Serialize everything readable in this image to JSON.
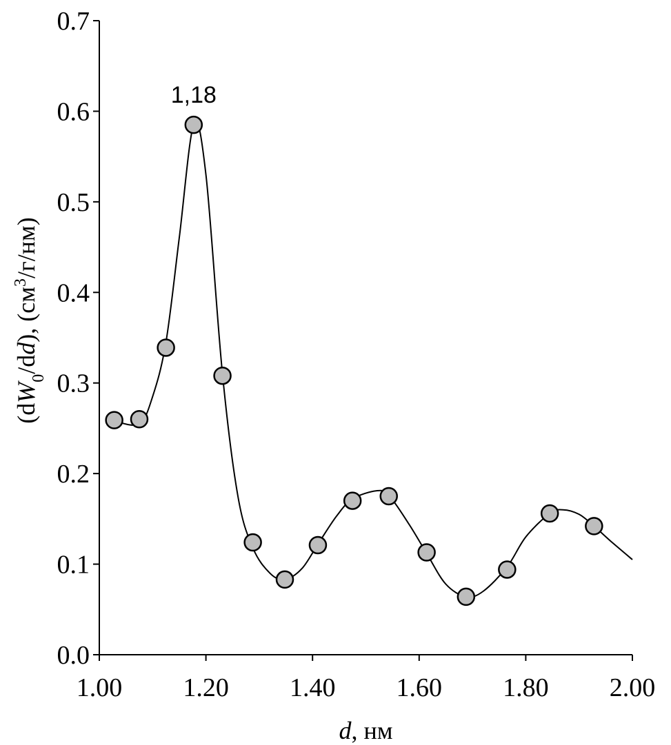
{
  "chart_data": {
    "type": "scatter",
    "title": "",
    "xlabel_var": "d",
    "xlabel_unit": ", нм",
    "ylabel_parts": {
      "open": "(d",
      "var_w": "W",
      "sub_0": "0",
      "mid": "/d",
      "var_d": "d",
      "close_unit": "), (см",
      "sup_3": "3",
      "tail": "/г/нм)"
    },
    "xlim": [
      1.0,
      2.0
    ],
    "ylim": [
      0.0,
      0.7
    ],
    "x_ticks": [
      1.0,
      1.2,
      1.4,
      1.6,
      1.8,
      2.0
    ],
    "x_tick_labels": [
      "1.00",
      "1.20",
      "1.40",
      "1.60",
      "1.80",
      "2.00"
    ],
    "y_ticks": [
      0.0,
      0.1,
      0.2,
      0.3,
      0.4,
      0.5,
      0.6,
      0.7
    ],
    "y_tick_labels": [
      "0.0",
      "0.1",
      "0.2",
      "0.3",
      "0.4",
      "0.5",
      "0.6",
      "0.7"
    ],
    "grid": false,
    "series": [
      {
        "marker": "circle",
        "marker_color": "#bdbdbd",
        "x": [
          1.028,
          1.075,
          1.125,
          1.177,
          1.231,
          1.288,
          1.348,
          1.41,
          1.475,
          1.543,
          1.614,
          1.688,
          1.765,
          1.845,
          1.928
        ],
        "y": [
          0.259,
          0.26,
          0.339,
          0.585,
          0.308,
          0.124,
          0.083,
          0.121,
          0.17,
          0.175,
          0.113,
          0.064,
          0.094,
          0.156,
          0.142
        ]
      }
    ],
    "fit_curve": {
      "style": "smooth line",
      "color": "#000000",
      "x": [
        1.028,
        1.075,
        1.1,
        1.125,
        1.15,
        1.177,
        1.2,
        1.231,
        1.26,
        1.288,
        1.32,
        1.348,
        1.38,
        1.41,
        1.445,
        1.475,
        1.52,
        1.543,
        1.58,
        1.614,
        1.65,
        1.688,
        1.72,
        1.765,
        1.8,
        1.845,
        1.87,
        1.9,
        1.928,
        1.96,
        2.0
      ],
      "y": [
        0.258,
        0.255,
        0.285,
        0.345,
        0.46,
        0.585,
        0.53,
        0.31,
        0.175,
        0.118,
        0.09,
        0.083,
        0.095,
        0.122,
        0.153,
        0.172,
        0.181,
        0.176,
        0.145,
        0.112,
        0.078,
        0.064,
        0.07,
        0.097,
        0.13,
        0.156,
        0.16,
        0.155,
        0.142,
        0.125,
        0.105
      ]
    },
    "annotations": [
      {
        "text": "1,18",
        "x": 1.177,
        "y": 0.585
      }
    ]
  }
}
